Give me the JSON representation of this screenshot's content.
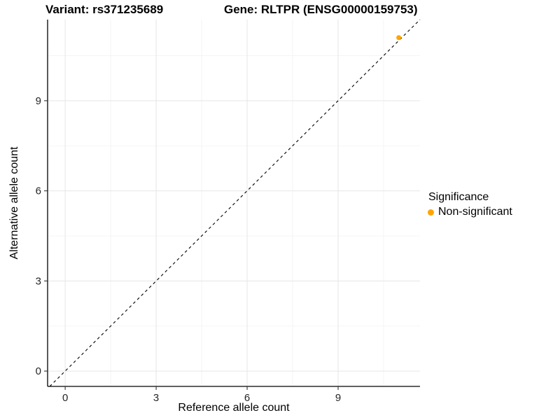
{
  "titles": {
    "variant": "Variant: rs371235689",
    "gene": "Gene: RLTPR (ENSG00000159753)"
  },
  "axes": {
    "x_label": "Reference allele count",
    "y_label": "Alternative allele count"
  },
  "legend": {
    "title": "Significance",
    "items": [
      {
        "label": "Non-significant",
        "color": "#FFA500"
      }
    ]
  },
  "colors": {
    "axis_line": "#000000",
    "tick_mark": "#333333",
    "major_grid": "#E6E6E6",
    "minor_grid": "#F2F2F2",
    "reference_line": "#000000",
    "background": "#FFFFFF"
  },
  "chart_data": {
    "type": "scatter",
    "title": "Variant: rs371235689 | Gene: RLTPR (ENSG00000159753)",
    "xlabel": "Reference allele count",
    "ylabel": "Alternative allele count",
    "xlim": [
      -0.58,
      11.7
    ],
    "ylim": [
      -0.51,
      11.7
    ],
    "x_ticks": [
      0,
      3,
      6,
      9
    ],
    "y_ticks": [
      0,
      3,
      6,
      9
    ],
    "x_minor_ticks": [
      1.5,
      4.5,
      7.5,
      10.5
    ],
    "y_minor_ticks": [
      1.5,
      4.5,
      7.5,
      10.5
    ],
    "grid": {
      "major": true,
      "minor": true
    },
    "legend_position": "right",
    "reference_line": {
      "kind": "identity",
      "equation": "y = x",
      "style": "dashed",
      "color": "#000000"
    },
    "series": [
      {
        "name": "Non-significant",
        "color": "#FFA500",
        "points": [
          {
            "x": 11,
            "y": 11.1
          }
        ]
      }
    ]
  }
}
